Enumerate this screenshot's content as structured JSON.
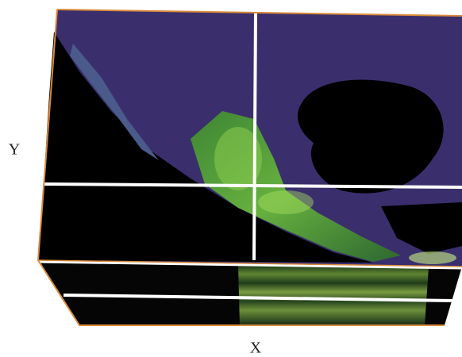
{
  "axes": {
    "x_label": "X",
    "y_label": "Y"
  }
}
